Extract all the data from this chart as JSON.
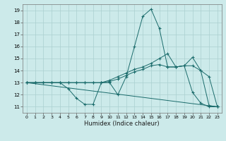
{
  "xlabel": "Humidex (Indice chaleur)",
  "background_color": "#cceaea",
  "grid_color": "#aacfcf",
  "line_color": "#1a6b6b",
  "xlim": [
    -0.5,
    23.5
  ],
  "ylim": [
    10.5,
    19.5
  ],
  "xticks": [
    0,
    1,
    2,
    3,
    4,
    5,
    6,
    7,
    8,
    9,
    10,
    11,
    12,
    13,
    14,
    15,
    16,
    17,
    18,
    19,
    20,
    21,
    22,
    23
  ],
  "yticks": [
    11,
    12,
    13,
    14,
    15,
    16,
    17,
    18,
    19
  ],
  "series": [
    {
      "x": [
        0,
        1,
        2,
        3,
        4,
        5,
        6,
        7,
        8,
        9,
        10,
        11,
        12,
        13,
        14,
        15,
        16,
        17,
        18,
        19,
        20,
        21,
        22,
        23
      ],
      "y": [
        13,
        13,
        13,
        13,
        13,
        12.5,
        11.7,
        11.2,
        11.2,
        13,
        13,
        12,
        13.5,
        16.0,
        18.5,
        19.1,
        17.5,
        14.3,
        14.3,
        14.4,
        12.2,
        11.3,
        11,
        11
      ]
    },
    {
      "x": [
        0,
        1,
        2,
        3,
        4,
        5,
        6,
        7,
        8,
        9,
        10,
        11,
        12,
        13,
        14,
        15,
        16,
        17,
        18,
        19,
        20,
        21,
        22,
        23
      ],
      "y": [
        13,
        13,
        13,
        13,
        13,
        13,
        13,
        13,
        13,
        13,
        13.2,
        13.5,
        13.8,
        14.1,
        14.3,
        14.6,
        15.0,
        15.4,
        14.3,
        14.4,
        15.1,
        14.0,
        11.1,
        11
      ]
    },
    {
      "x": [
        0,
        1,
        2,
        3,
        4,
        5,
        6,
        7,
        8,
        9,
        10,
        11,
        12,
        13,
        14,
        15,
        16,
        17,
        18,
        19,
        20,
        21,
        22,
        23
      ],
      "y": [
        13,
        13,
        13,
        13,
        13,
        13,
        13,
        13,
        13,
        13,
        13.1,
        13.3,
        13.6,
        13.9,
        14.1,
        14.4,
        14.5,
        14.3,
        14.3,
        14.4,
        14.4,
        14.0,
        13.5,
        11
      ]
    },
    {
      "x": [
        0,
        23
      ],
      "y": [
        13,
        11
      ]
    }
  ]
}
